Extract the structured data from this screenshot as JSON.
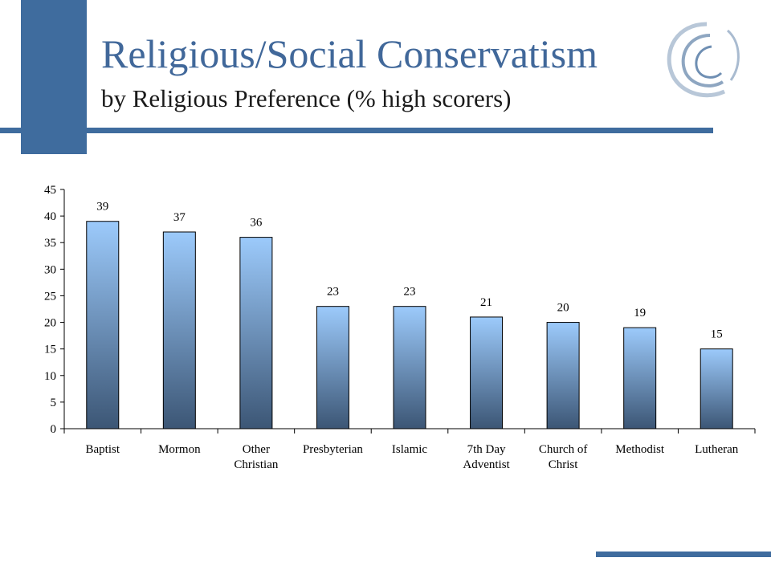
{
  "slide": {
    "title": "Religious/Social Conservatism",
    "subtitle": "by Religious Preference (% high scorers)"
  },
  "colors": {
    "accent": "#3f6c9e",
    "bar_top": "#9ccafb",
    "bar_bottom": "#3c5675"
  },
  "chart_data": {
    "type": "bar",
    "categories": [
      [
        "Baptist"
      ],
      [
        "Mormon"
      ],
      [
        "Other",
        "Christian"
      ],
      [
        "Presbyterian"
      ],
      [
        "Islamic"
      ],
      [
        "7th Day",
        "Adventist"
      ],
      [
        "Church of",
        "Christ"
      ],
      [
        "Methodist"
      ],
      [
        "Lutheran"
      ]
    ],
    "values": [
      39,
      37,
      36,
      23,
      23,
      21,
      20,
      19,
      15
    ],
    "data_labels": [
      "39",
      "37",
      "36",
      "23",
      "23",
      "21",
      "20",
      "19",
      "15"
    ],
    "yticks": [
      0,
      5,
      10,
      15,
      20,
      25,
      30,
      35,
      40,
      45
    ],
    "ylim": [
      0,
      45
    ],
    "grid": false,
    "legend": "none"
  }
}
